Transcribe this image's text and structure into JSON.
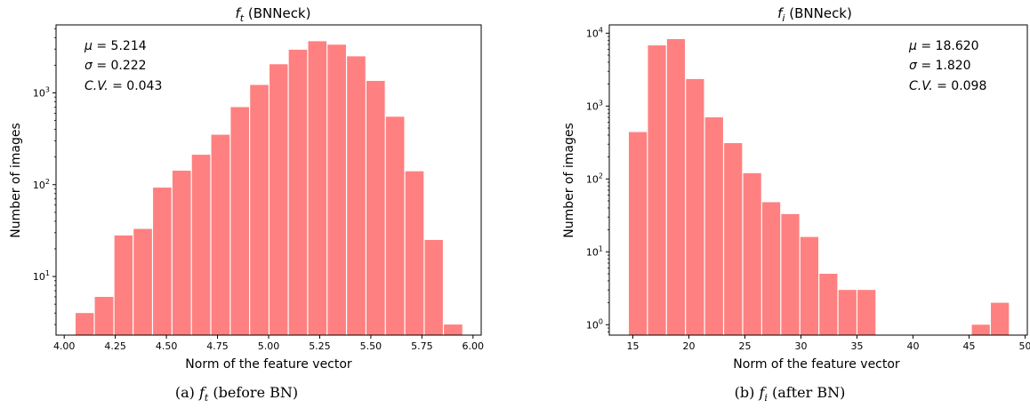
{
  "chart_data": [
    {
      "type": "bar",
      "title": "$f_t$ (BNNeck)",
      "title_sym": "f",
      "title_sub": "t",
      "title_rest": " (BNNeck)",
      "xlabel": "Norm of the feature vector",
      "ylabel": "Number of images",
      "yscale": "log",
      "xlim": [
        3.96,
        6.04
      ],
      "ylim": [
        2.3,
        5500
      ],
      "bar_color": "#ff8080",
      "xticks": [
        {
          "v": 4.0,
          "label": "4.00"
        },
        {
          "v": 4.25,
          "label": "4.25"
        },
        {
          "v": 4.5,
          "label": "4.50"
        },
        {
          "v": 4.75,
          "label": "4.75"
        },
        {
          "v": 5.0,
          "label": "5.00"
        },
        {
          "v": 5.25,
          "label": "5.25"
        },
        {
          "v": 5.5,
          "label": "5.50"
        },
        {
          "v": 5.75,
          "label": "5.75"
        },
        {
          "v": 6.0,
          "label": "6.00"
        }
      ],
      "yticks": [
        {
          "v": 10,
          "base": "10",
          "exp": "1"
        },
        {
          "v": 100,
          "base": "10",
          "exp": "2"
        },
        {
          "v": 1000,
          "base": "10",
          "exp": "3"
        }
      ],
      "bin_edges": [
        4.053,
        4.147,
        4.243,
        4.337,
        4.432,
        4.527,
        4.622,
        4.717,
        4.812,
        4.907,
        5.002,
        5.096,
        5.191,
        5.286,
        5.381,
        5.476,
        5.571,
        5.666,
        5.761,
        5.855,
        5.95
      ],
      "values": [
        4,
        6,
        28,
        33,
        93,
        142,
        212,
        350,
        700,
        1220,
        2050,
        2950,
        3650,
        3350,
        2500,
        1350,
        550,
        140,
        25,
        3
      ],
      "stats": [
        {
          "sym": "μ",
          "eq": " = 5.214"
        },
        {
          "sym": "σ",
          "eq": " = 0.222"
        },
        {
          "sym": "C.V.",
          "eq": " = 0.043"
        }
      ]
    },
    {
      "type": "bar",
      "title": "$f_i$ (BNNeck)",
      "title_sym": "f",
      "title_sub": "i",
      "title_rest": " (BNNeck)",
      "xlabel": "Norm of the feature vector",
      "ylabel": "Number of images",
      "yscale": "log",
      "xlim": [
        12.9,
        50.2
      ],
      "ylim": [
        0.72,
        13000
      ],
      "bar_color": "#ff8080",
      "xticks": [
        {
          "v": 15,
          "label": "15"
        },
        {
          "v": 20,
          "label": "20"
        },
        {
          "v": 25,
          "label": "25"
        },
        {
          "v": 30,
          "label": "30"
        },
        {
          "v": 35,
          "label": "35"
        },
        {
          "v": 40,
          "label": "40"
        },
        {
          "v": 45,
          "label": "45"
        },
        {
          "v": 50,
          "label": "50"
        }
      ],
      "yticks": [
        {
          "v": 1,
          "base": "10",
          "exp": "0"
        },
        {
          "v": 10,
          "base": "10",
          "exp": "1"
        },
        {
          "v": 100,
          "base": "10",
          "exp": "2"
        },
        {
          "v": 1000,
          "base": "10",
          "exp": "3"
        },
        {
          "v": 10000,
          "base": "10",
          "exp": "4"
        }
      ],
      "bin_edges": [
        14.6,
        16.3,
        18.0,
        19.7,
        21.4,
        23.1,
        24.8,
        26.5,
        28.2,
        29.9,
        31.6,
        33.3,
        35.0,
        36.7,
        38.4,
        40.1,
        41.8,
        43.5,
        45.2,
        46.9,
        48.6
      ],
      "values": [
        440,
        6800,
        8300,
        2350,
        700,
        310,
        120,
        48,
        33,
        16,
        5,
        3,
        3,
        0,
        0,
        0,
        0,
        0,
        1,
        2
      ],
      "stats": [
        {
          "sym": "μ",
          "eq": " = 18.620"
        },
        {
          "sym": "σ",
          "eq": " = 1.820"
        },
        {
          "sym": "C.V.",
          "eq": " = 0.098"
        }
      ]
    }
  ],
  "captions": [
    {
      "prefix": "(a) ",
      "sym": "f",
      "sub": "t",
      "suffix": " (before BN)"
    },
    {
      "prefix": "(b) ",
      "sym": "f",
      "sub": "i",
      "suffix": " (after BN)"
    }
  ]
}
